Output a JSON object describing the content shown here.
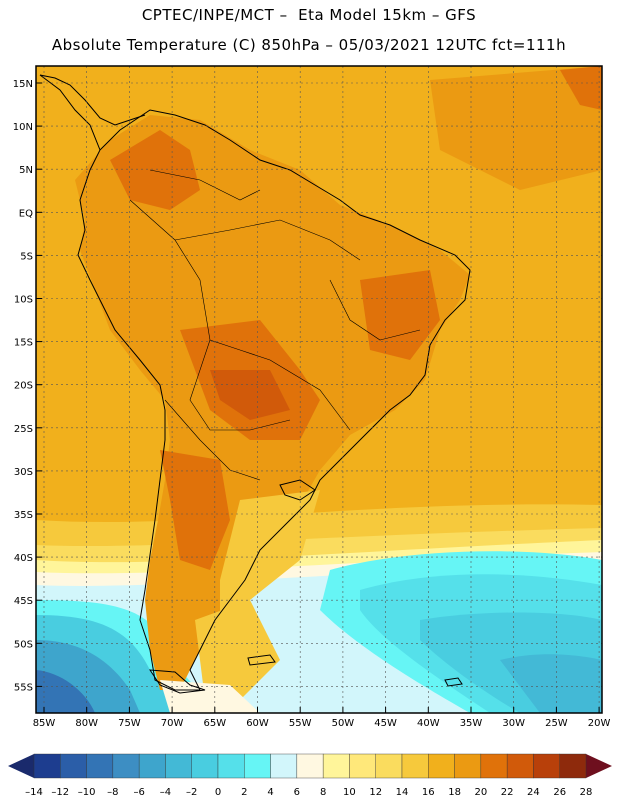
{
  "header": {
    "title_line1": "CPTEC/INPE/MCT –  Eta Model 15km – GFS",
    "title_line2": "Absolute Temperature (C) 850hPa – 05/03/2021 12UTC fct=111h"
  },
  "map": {
    "lat_labels": [
      "15N",
      "10N",
      "5N",
      "EQ",
      "5S",
      "10S",
      "15S",
      "20S",
      "25S",
      "30S",
      "35S",
      "40S",
      "45S",
      "50S",
      "55S"
    ],
    "lon_labels": [
      "85W",
      "80W",
      "75W",
      "70W",
      "65W",
      "60W",
      "55W",
      "50W",
      "45W",
      "40W",
      "35W",
      "30W",
      "25W",
      "20W"
    ]
  },
  "colorbar": {
    "labels": [
      "-14",
      "-12",
      "-10",
      "-8",
      "-6",
      "-4",
      "-2",
      "0",
      "2",
      "4",
      "6",
      "8",
      "10",
      "12",
      "14",
      "16",
      "18",
      "20",
      "22",
      "24",
      "26",
      "28"
    ],
    "colors": [
      "#1d3d8f",
      "#2b5ea8",
      "#3374b5",
      "#3d8ec3",
      "#3ea5cc",
      "#43b9d6",
      "#49cde0",
      "#55e0ea",
      "#66f5f5",
      "#d2f6fb",
      "#fff8e1",
      "#fff59a",
      "#ffe87a",
      "#fadc5e",
      "#f6c93c",
      "#f1b01c",
      "#eb9a12",
      "#e0720a",
      "#d15a0a",
      "#b8400a",
      "#8e2a0c"
    ],
    "low_arrow_color": "#1a2a6c",
    "high_arrow_color": "#6e0f1e"
  }
}
